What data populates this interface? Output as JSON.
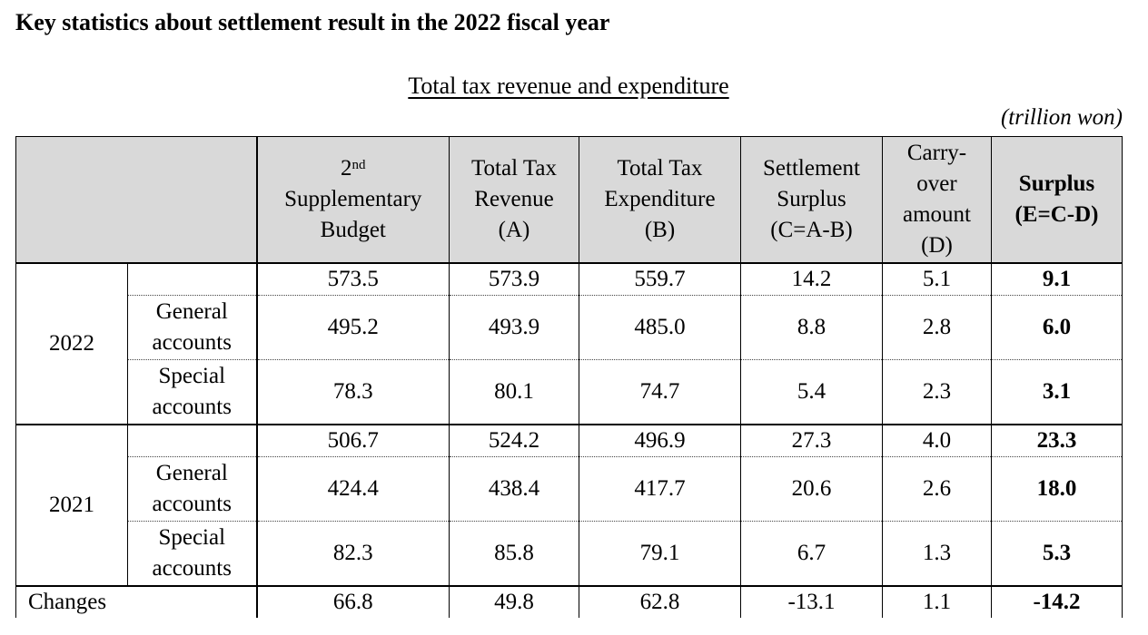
{
  "document": {
    "title": "Key statistics about settlement result in the 2022 fiscal year",
    "table_title": "Total tax revenue and expenditure",
    "unit": "(trillion won)"
  },
  "table": {
    "headers": {
      "budget_prefix": "2",
      "budget_sup": "nd",
      "budget_rest": "Supplementary Budget",
      "revenue": "Total Tax Revenue (A)",
      "expenditure": "Total Tax Expenditure (B)",
      "settlement": "Settlement Surplus (C=A-B)",
      "carryover": "Carry- over amount (D)",
      "surplus": "Surplus (E=C-D)"
    },
    "groups": [
      {
        "year": "2022",
        "total": {
          "budget": "573.5",
          "revenue": "573.9",
          "expenditure": "559.7",
          "settlement": "14.2",
          "carryover": "5.1",
          "surplus": "9.1"
        },
        "general": {
          "label": "General accounts",
          "budget": "495.2",
          "revenue": "493.9",
          "expenditure": "485.0",
          "settlement": "8.8",
          "carryover": "2.8",
          "surplus": "6.0"
        },
        "special": {
          "label": "Special accounts",
          "budget": "78.3",
          "revenue": "80.1",
          "expenditure": "74.7",
          "settlement": "5.4",
          "carryover": "2.3",
          "surplus": "3.1"
        }
      },
      {
        "year": "2021",
        "total": {
          "budget": "506.7",
          "revenue": "524.2",
          "expenditure": "496.9",
          "settlement": "27.3",
          "carryover": "4.0",
          "surplus": "23.3"
        },
        "general": {
          "label": "General accounts",
          "budget": "424.4",
          "revenue": "438.4",
          "expenditure": "417.7",
          "settlement": "20.6",
          "carryover": "2.6",
          "surplus": "18.0"
        },
        "special": {
          "label": "Special accounts",
          "budget": "82.3",
          "revenue": "85.8",
          "expenditure": "79.1",
          "settlement": "6.7",
          "carryover": "1.3",
          "surplus": "5.3"
        }
      }
    ],
    "changes": {
      "label": "Changes",
      "budget": "66.8",
      "revenue": "49.8",
      "expenditure": "62.8",
      "settlement": "-13.1",
      "carryover": "1.1",
      "surplus": "-14.2"
    }
  }
}
